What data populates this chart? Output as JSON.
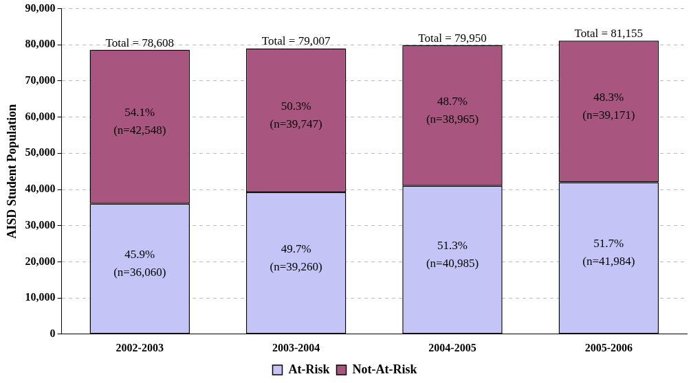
{
  "chart_data": {
    "type": "bar",
    "stacked": true,
    "ylabel": "AISD Student Population",
    "categories": [
      "2002-2003",
      "2003-2004",
      "2004-2005",
      "2005-2006"
    ],
    "series": [
      {
        "name": "At-Risk",
        "color": "#c4c4f6",
        "values": [
          36060,
          39260,
          40985,
          41984
        ],
        "value_labels": [
          "45.9% (n=36,060)",
          "49.7% (n=39,260)",
          "51.3% (n=40,985)",
          "51.7% (n=41,984)"
        ]
      },
      {
        "name": "Not-At-Risk",
        "color": "#a8567f",
        "values": [
          42548,
          39747,
          38965,
          39171
        ],
        "value_labels": [
          "54.1% (n=42,548)",
          "50.3% (n=39,747)",
          "48.7% (n=38,965)",
          "48.3% (n=39,171)"
        ]
      }
    ],
    "totals": [
      "Total = 78,608",
      "Total = 79,007",
      "Total = 79,950",
      "Total = 81,155"
    ],
    "ylim": [
      0,
      90000
    ],
    "yticks": [
      0,
      {
        "value": 10000,
        "label": "10,000"
      },
      {
        "value": 20000,
        "label": "20,000"
      },
      {
        "value": 30000,
        "label": "30,000"
      },
      {
        "value": 40000,
        "label": "40,000"
      },
      {
        "value": 50000,
        "label": "50,000"
      },
      {
        "value": 60000,
        "label": "60,000"
      },
      {
        "value": 70000,
        "label": "70,000"
      },
      {
        "value": 80000,
        "label": "80,000"
      },
      {
        "value": 90000,
        "label": "90,000"
      }
    ],
    "grid": "y",
    "legend": "bottom"
  }
}
